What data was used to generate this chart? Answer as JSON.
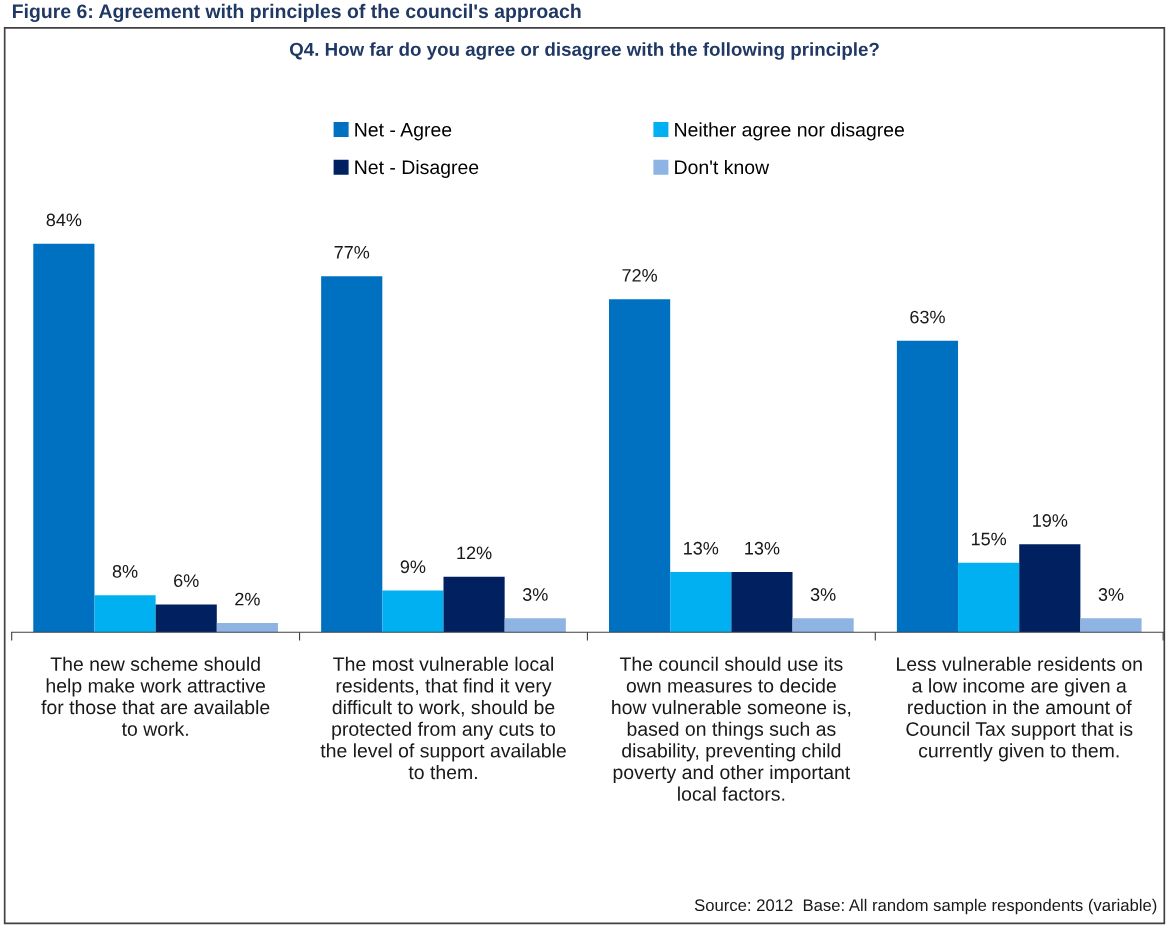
{
  "chart_data": {
    "type": "bar",
    "title": "Figure 6: Agreement with principles of the council's approach",
    "subtitle": "Q4. How far do you agree or disagree with the following principle?",
    "categories": [
      "The new scheme should\nhelp make work attractive\nfor those that are available\nto work.",
      "The most vulnerable local\nresidents, that find it very\ndifficult to work, should be\nprotected from any cuts to\nthe level of support available\nto them.",
      "The council should use its\nown measures to decide\nhow vulnerable someone is,\nbased on things such as\ndisability, preventing child\npoverty and other important\nlocal factors.",
      "Less vulnerable residents on\na low income are given a\nreduction in the amount of\nCouncil Tax support that is\ncurrently given to them."
    ],
    "series": [
      {
        "name": "Net - Agree",
        "color": "#0070c0",
        "values": [
          84,
          77,
          72,
          63
        ],
        "value_labels": [
          "84%",
          "77%",
          "72%",
          "63%"
        ]
      },
      {
        "name": "Neither agree nor disagree",
        "color": "#00b0f0",
        "values": [
          8,
          9,
          13,
          15
        ],
        "value_labels": [
          "8%",
          "9%",
          "13%",
          "15%"
        ]
      },
      {
        "name": "Net - Disagree",
        "color": "#002060",
        "values": [
          6,
          12,
          13,
          19
        ],
        "value_labels": [
          "6%",
          "12%",
          "13%",
          "19%"
        ]
      },
      {
        "name": "Don't know",
        "color": "#8eb4e3",
        "values": [
          2,
          3,
          3,
          3
        ],
        "value_labels": [
          "2%",
          "3%",
          "3%",
          "3%"
        ]
      }
    ],
    "legend": "top",
    "annotations": [
      "Source: 2012  Base: All random sample respondents (variable)"
    ]
  }
}
